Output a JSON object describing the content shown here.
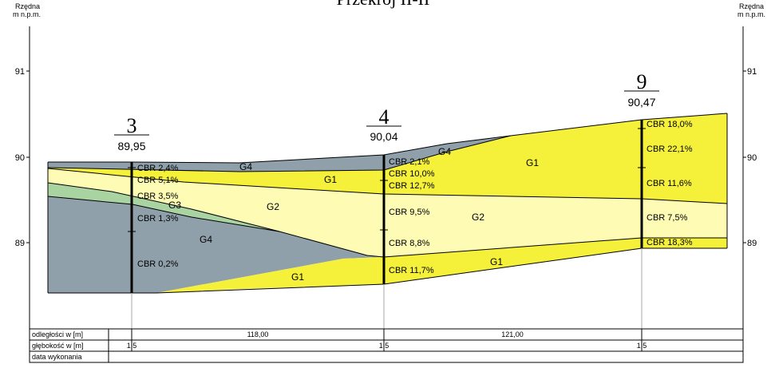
{
  "title": "Przekrój II-II",
  "elevation_label_line1": "Rzędna",
  "elevation_label_line2": "m n.p.m.",
  "axis_ticks": [
    "91",
    "90",
    "89"
  ],
  "boreholes": [
    {
      "number": "3",
      "elevation": "89,95",
      "cbr": [
        "CBR 2,4%",
        "CBR 5,1%",
        "CBR 3,5%",
        "CBR 1,3%",
        "CBR 0,2%"
      ]
    },
    {
      "number": "4",
      "elevation": "90,04",
      "cbr": [
        "CBR 2,1%",
        "CBR 10,0%",
        "CBR 12,7%",
        "CBR 9,5%",
        "CBR 8,8%",
        "CBR 11,7%"
      ]
    },
    {
      "number": "9",
      "elevation": "90,47",
      "cbr": [
        "CBR 18,0%",
        "CBR 22,1%",
        "CBR 11,6%",
        "CBR 7,5%",
        "CBR 18,3%"
      ]
    }
  ],
  "layer_labels": {
    "g4_top": "G4",
    "g1_left": "G1",
    "g3": "G3",
    "g2_left": "G2",
    "g4_left": "G4",
    "g1_bottom": "G1",
    "g4_right": "G4",
    "g1_right": "G1",
    "g2_right": "G2",
    "g1_mid": "G1"
  },
  "table": {
    "row1_label": "odległości w [m]",
    "row2_label": "głębokość w [m]",
    "row3_label": "data wykonania",
    "distances": [
      "118,00",
      "121,00"
    ],
    "depths": [
      "1,5",
      "1,5",
      "1,5"
    ]
  },
  "colors": {
    "G1": "#f5f03a",
    "G2": "#fdfbb4",
    "G3": "#a9d4a2",
    "G4": "#8fa0ab",
    "line": "#000000"
  }
}
